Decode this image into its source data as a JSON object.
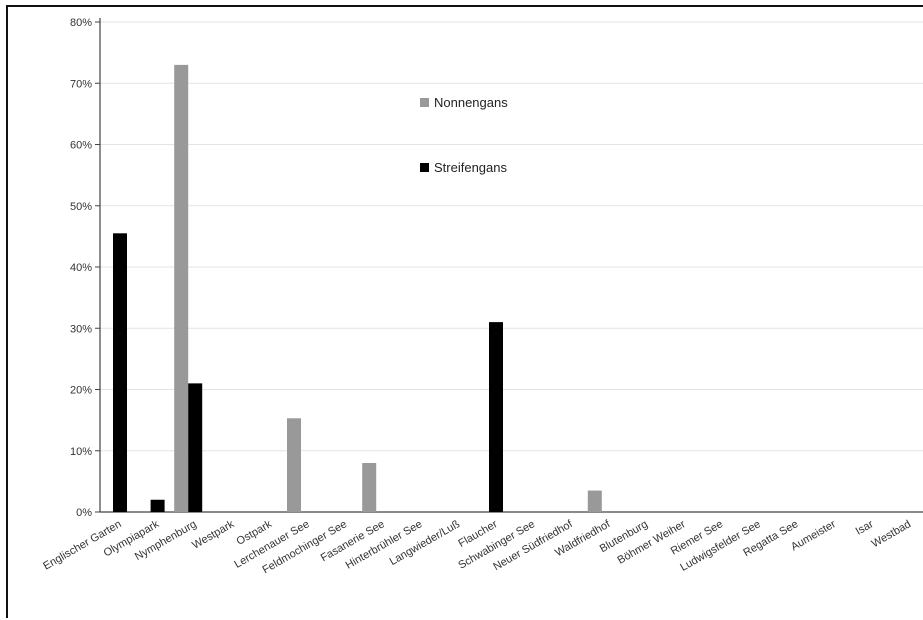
{
  "chart_data": {
    "type": "bar",
    "title": "",
    "xlabel": "",
    "ylabel": "",
    "ylim": [
      0,
      0.8
    ],
    "y_tick_values": [
      0,
      0.1,
      0.2,
      0.3,
      0.4,
      0.5,
      0.6,
      0.7,
      0.8
    ],
    "y_tick_labels": [
      "0%",
      "10%",
      "20%",
      "30%",
      "40%",
      "50%",
      "60%",
      "70%",
      "80%"
    ],
    "grid": "horizontal",
    "legend_position": "upper-middle",
    "categories": [
      "Englischer Garten",
      "Olympiapark",
      "Nymphenburg",
      "Westpark",
      "Ostpark",
      "Lerchenauer See",
      "Feldmochinger See",
      "Fasanerie See",
      "Hinterbrühler See",
      "Langwieder/Luß",
      "Flaucher",
      "Schwabinger See",
      "Neuer Südfriedhof",
      "Waldfriedhof",
      "Blutenburg",
      "Böhmer Weiher",
      "Riemer See",
      "Ludwigsfelder See",
      "Regatta See",
      "Aumeister",
      "Isar",
      "Westbad"
    ],
    "series": [
      {
        "name": "Nonnengans",
        "color": "#999999",
        "values": [
          0,
          0,
          0.73,
          0,
          0,
          0.153,
          0,
          0.08,
          0,
          0,
          0,
          0,
          0,
          0.035,
          0,
          0,
          0,
          0,
          0,
          0,
          0,
          0
        ]
      },
      {
        "name": "Streifengans",
        "color": "#000000",
        "values": [
          0.455,
          0.02,
          0.21,
          0,
          0,
          0,
          0,
          0,
          0,
          0,
          0.31,
          0,
          0,
          0,
          0,
          0,
          0,
          0,
          0,
          0,
          0,
          0
        ]
      }
    ]
  }
}
